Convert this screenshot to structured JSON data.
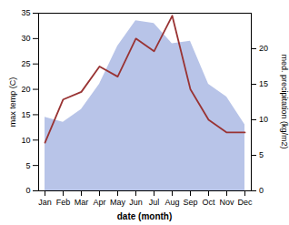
{
  "chart_data": {
    "type": "line",
    "categories": [
      "Jan",
      "Feb",
      "Mar",
      "Apr",
      "May",
      "Jun",
      "Jul",
      "Aug",
      "Sep",
      "Oct",
      "Nov",
      "Dec"
    ],
    "series": [
      {
        "type": "area",
        "color": "#b8c4e8",
        "values": [
          14.5,
          13.5,
          16.0,
          21.0,
          28.5,
          33.5,
          33.0,
          29.0,
          29.5,
          21.0,
          18.5,
          13.0
        ]
      },
      {
        "type": "line",
        "color": "#993333",
        "values": [
          9.5,
          18.0,
          19.5,
          24.5,
          22.5,
          30.0,
          27.5,
          34.5,
          20.0,
          14.0,
          11.5,
          11.5
        ]
      }
    ],
    "xlabel": "date (month)",
    "ylabel": "max temp (C)",
    "y2label": "med. precipitation (kg/m2)",
    "ylim": [
      0,
      35
    ],
    "yticks": [
      0,
      5,
      10,
      15,
      20,
      25,
      30,
      35
    ],
    "y2lim": [
      0,
      25
    ],
    "y2ticks": [
      0,
      5,
      10,
      15,
      20
    ],
    "grid": false
  }
}
